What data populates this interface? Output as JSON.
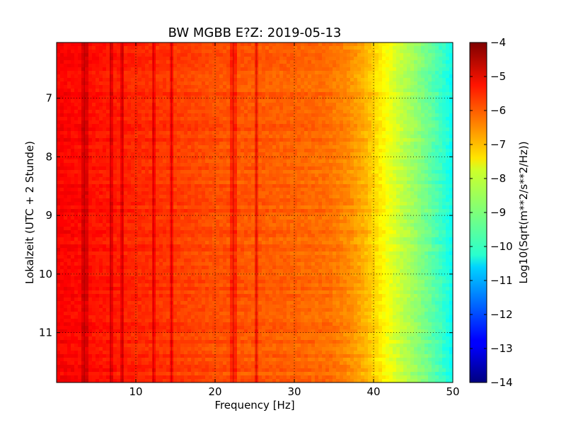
{
  "chart_data": {
    "type": "heatmap",
    "title": "BW MGBB E?Z: 2019-05-13",
    "xlabel": "Frequency [Hz]",
    "ylabel": "Lokalzeit (UTC + 2 Stunde)",
    "xlim": [
      0,
      50
    ],
    "ylim": [
      11.85,
      6.05
    ],
    "x_ticks": [
      {
        "value": 10,
        "label": "10"
      },
      {
        "value": 20,
        "label": "20"
      },
      {
        "value": 30,
        "label": "30"
      },
      {
        "value": 40,
        "label": "40"
      },
      {
        "value": 50,
        "label": "50"
      }
    ],
    "y_ticks": [
      {
        "value": 7,
        "label": "7"
      },
      {
        "value": 8,
        "label": "8"
      },
      {
        "value": 9,
        "label": "9"
      },
      {
        "value": 10,
        "label": "10"
      },
      {
        "value": 11,
        "label": "11"
      }
    ],
    "grid": true,
    "colormap": "jet",
    "colorbar": {
      "label": "Log10(Sqrt(m**2/s**2/Hz))",
      "range": [
        -14,
        -4
      ],
      "ticks": [
        {
          "value": -4,
          "label": "−4"
        },
        {
          "value": -5,
          "label": "−5"
        },
        {
          "value": -6,
          "label": "−6"
        },
        {
          "value": -7,
          "label": "−7"
        },
        {
          "value": -8,
          "label": "−8"
        },
        {
          "value": -9,
          "label": "−9"
        },
        {
          "value": -10,
          "label": "−10"
        },
        {
          "value": -11,
          "label": "−11"
        },
        {
          "value": -12,
          "label": "−12"
        },
        {
          "value": -13,
          "label": "−13"
        },
        {
          "value": -14,
          "label": "−14"
        }
      ]
    },
    "spectrum_profile": {
      "frequency_hz": [
        0,
        5,
        10,
        15,
        20,
        25,
        30,
        34,
        37,
        39,
        41,
        43,
        45,
        47,
        49,
        50
      ],
      "log_amplitude": [
        -5.2,
        -5.4,
        -5.6,
        -5.8,
        -6.0,
        -6.1,
        -6.2,
        -6.3,
        -6.6,
        -7.0,
        -7.6,
        -8.2,
        -8.7,
        -9.2,
        -9.8,
        -10.2
      ]
    },
    "spectral_lines_hz": [
      3.5,
      6.8,
      8.3,
      12.2,
      14.5,
      22.3,
      25.2
    ]
  }
}
